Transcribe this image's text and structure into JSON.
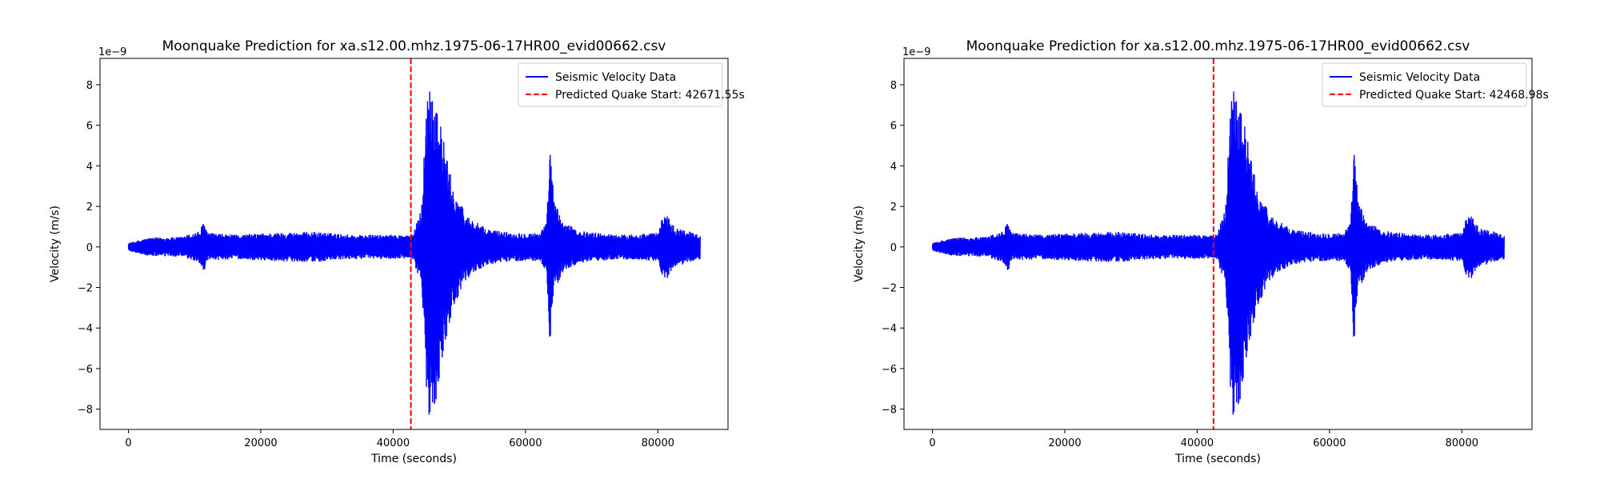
{
  "chart_data": [
    {
      "type": "line",
      "title": "Moonquake Prediction for xa.s12.00.mhz.1975-06-17HR00_evid00662.csv",
      "xlabel": "Time (seconds)",
      "ylabel": "Velocity (m/s)",
      "y_scale_exponent": "1e−9",
      "xlim": [
        -4300,
        90600
      ],
      "ylim": [
        -9.0,
        9.3
      ],
      "xticks": [
        0,
        20000,
        40000,
        60000,
        80000
      ],
      "yticks": [
        -8,
        -6,
        -4,
        -2,
        0,
        2,
        4,
        6,
        8
      ],
      "grid": false,
      "legend_position": "top-right",
      "series": [
        {
          "name": "Seismic Velocity Data",
          "color": "#0000ff",
          "style": "solid",
          "x_start": 0,
          "x_end": 86400,
          "envelope": [
            [
              0,
              0.2
            ],
            [
              3000,
              0.45
            ],
            [
              8000,
              0.5
            ],
            [
              10800,
              0.8
            ],
            [
              11400,
              1.3
            ],
            [
              12000,
              0.7
            ],
            [
              16000,
              0.6
            ],
            [
              22000,
              0.7
            ],
            [
              28000,
              0.75
            ],
            [
              34000,
              0.6
            ],
            [
              40000,
              0.6
            ],
            [
              43000,
              0.6
            ],
            [
              44300,
              2.0
            ],
            [
              45000,
              7.0
            ],
            [
              45500,
              8.5
            ],
            [
              46500,
              7.5
            ],
            [
              47500,
              5.5
            ],
            [
              49000,
              3.0
            ],
            [
              51000,
              1.6
            ],
            [
              54000,
              0.9
            ],
            [
              58000,
              0.7
            ],
            [
              62000,
              0.7
            ],
            [
              63200,
              1.2
            ],
            [
              63700,
              5.0
            ],
            [
              64300,
              2.4
            ],
            [
              65500,
              1.3
            ],
            [
              68000,
              0.8
            ],
            [
              74000,
              0.6
            ],
            [
              80000,
              0.7
            ],
            [
              81000,
              1.8
            ],
            [
              82500,
              1.0
            ],
            [
              86400,
              0.6
            ]
          ]
        },
        {
          "name": "Predicted Quake Start: 42671.55s",
          "color": "#ff0000",
          "style": "dashed",
          "x": 42671.55
        }
      ]
    },
    {
      "type": "line",
      "title": "Moonquake Prediction for xa.s12.00.mhz.1975-06-17HR00_evid00662.csv",
      "xlabel": "Time (seconds)",
      "ylabel": "Velocity (m/s)",
      "y_scale_exponent": "1e−9",
      "xlim": [
        -4300,
        90600
      ],
      "ylim": [
        -9.0,
        9.3
      ],
      "xticks": [
        0,
        20000,
        40000,
        60000,
        80000
      ],
      "yticks": [
        -8,
        -6,
        -4,
        -2,
        0,
        2,
        4,
        6,
        8
      ],
      "grid": false,
      "legend_position": "top-right",
      "series": [
        {
          "name": "Seismic Velocity Data",
          "color": "#0000ff",
          "style": "solid",
          "x_start": 0,
          "x_end": 86400,
          "envelope": [
            [
              0,
              0.2
            ],
            [
              3000,
              0.45
            ],
            [
              8000,
              0.5
            ],
            [
              10800,
              0.8
            ],
            [
              11400,
              1.3
            ],
            [
              12000,
              0.7
            ],
            [
              16000,
              0.6
            ],
            [
              22000,
              0.7
            ],
            [
              28000,
              0.75
            ],
            [
              34000,
              0.6
            ],
            [
              40000,
              0.6
            ],
            [
              43000,
              0.6
            ],
            [
              44300,
              2.0
            ],
            [
              45000,
              7.0
            ],
            [
              45500,
              8.5
            ],
            [
              46500,
              7.5
            ],
            [
              47500,
              5.5
            ],
            [
              49000,
              3.0
            ],
            [
              51000,
              1.6
            ],
            [
              54000,
              0.9
            ],
            [
              58000,
              0.7
            ],
            [
              62000,
              0.7
            ],
            [
              63200,
              1.2
            ],
            [
              63700,
              5.0
            ],
            [
              64300,
              2.4
            ],
            [
              65500,
              1.3
            ],
            [
              68000,
              0.8
            ],
            [
              74000,
              0.6
            ],
            [
              80000,
              0.7
            ],
            [
              81000,
              1.8
            ],
            [
              82500,
              1.0
            ],
            [
              86400,
              0.6
            ]
          ]
        },
        {
          "name": "Predicted Quake Start: 42468.98s",
          "color": "#ff0000",
          "style": "dashed",
          "x": 42468.98
        }
      ]
    }
  ]
}
